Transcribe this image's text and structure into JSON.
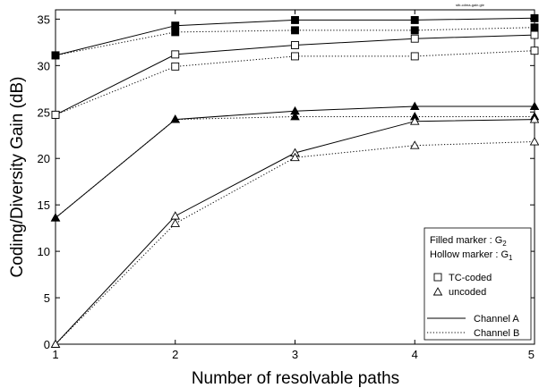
{
  "chart_data": {
    "type": "line",
    "corner_note": "stb-cdma-gain.gle",
    "xlabel": "Number of resolvable paths",
    "ylabel": "Coding/Diversity Gain (dB)",
    "x": [
      1,
      2,
      3,
      4,
      5
    ],
    "xlim": [
      1,
      5
    ],
    "ylim": [
      0,
      36
    ],
    "xticks": [
      1,
      2,
      3,
      4,
      5
    ],
    "yticks": [
      0,
      5,
      10,
      15,
      20,
      25,
      30,
      35
    ],
    "grid": false,
    "series": [
      {
        "coding": "TC-coded",
        "gain": "G2",
        "channel": "Channel A",
        "marker": "filled-square",
        "values": [
          31.1,
          34.3,
          34.9,
          34.9,
          35.1
        ]
      },
      {
        "coding": "TC-coded",
        "gain": "G2",
        "channel": "Channel B",
        "marker": "filled-square",
        "values": [
          31.1,
          33.6,
          33.8,
          33.8,
          34.1
        ]
      },
      {
        "coding": "TC-coded",
        "gain": "G1",
        "channel": "Channel A",
        "marker": "hollow-square",
        "values": [
          24.7,
          31.2,
          32.2,
          32.9,
          33.3
        ]
      },
      {
        "coding": "TC-coded",
        "gain": "G1",
        "channel": "Channel B",
        "marker": "hollow-square",
        "values": [
          24.7,
          29.9,
          31.0,
          31.0,
          31.6
        ]
      },
      {
        "coding": "uncoded",
        "gain": "G2",
        "channel": "Channel A",
        "marker": "filled-triangle",
        "values": [
          13.6,
          24.2,
          25.1,
          25.6,
          25.6
        ]
      },
      {
        "coding": "uncoded",
        "gain": "G2",
        "channel": "Channel B",
        "marker": "filled-triangle",
        "values": [
          13.6,
          24.2,
          24.5,
          24.5,
          24.5
        ]
      },
      {
        "coding": "uncoded",
        "gain": "G1",
        "channel": "Channel A",
        "marker": "hollow-triangle",
        "values": [
          0.0,
          13.8,
          20.6,
          24.0,
          24.2
        ]
      },
      {
        "coding": "uncoded",
        "gain": "G1",
        "channel": "Channel B",
        "marker": "hollow-triangle",
        "values": [
          0.0,
          13.0,
          20.1,
          21.4,
          21.8
        ]
      }
    ],
    "legend": {
      "placement": "bottom-right",
      "filled_marker": {
        "text": "Filled marker : G",
        "sub": "2"
      },
      "hollow_marker": {
        "text": "Hollow marker : G",
        "sub": "1"
      },
      "markers": [
        {
          "symbol": "square",
          "label": "TC-coded"
        },
        {
          "symbol": "triangle",
          "label": "uncoded"
        }
      ],
      "lines": [
        {
          "style": "solid",
          "label": "Channel A"
        },
        {
          "style": "dotted",
          "label": "Channel B"
        }
      ]
    }
  }
}
